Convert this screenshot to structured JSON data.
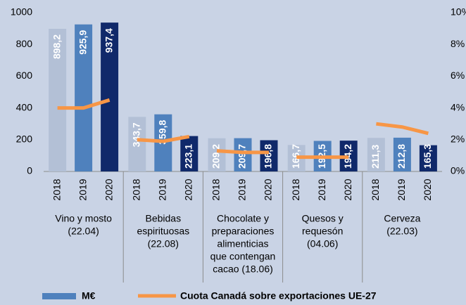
{
  "chart_data": {
    "type": "bar",
    "categories": [
      "2018",
      "2019",
      "2020",
      "2018",
      "2019",
      "2020",
      "2018",
      "2019",
      "2020",
      "2018",
      "2019",
      "2020",
      "2018",
      "2019",
      "2020"
    ],
    "groups": [
      {
        "label": [
          "Vino y mosto",
          "(22.04)"
        ]
      },
      {
        "label": [
          "Bebidas",
          "espirituosas",
          "(22.08)"
        ]
      },
      {
        "label": [
          "Chocolate y",
          "preparaciones",
          "alimenticias",
          "que contengan",
          "cacao (18.06)"
        ]
      },
      {
        "label": [
          "Quesos y",
          "requesón",
          "(04.06)"
        ]
      },
      {
        "label": [
          "Cerveza",
          "(22.03)"
        ]
      }
    ],
    "series": [
      {
        "name": "M€",
        "color": "#4f81bd",
        "colors": [
          "#b3c0d6",
          "#4f81bd",
          "#10296a",
          "#b3c0d6",
          "#4f81bd",
          "#10296a",
          "#b3c0d6",
          "#4f81bd",
          "#10296a",
          "#b3c0d6",
          "#4f81bd",
          "#10296a",
          "#b3c0d6",
          "#4f81bd",
          "#10296a"
        ],
        "values": [
          898.2,
          925.9,
          937.4,
          343.7,
          359.8,
          223.1,
          209.2,
          209.7,
          196.8,
          166.7,
          192.5,
          194.2,
          211.3,
          212.8,
          165.3
        ],
        "value_labels": [
          "898,2",
          "925,9",
          "937,4",
          "343,7",
          "359,8",
          "223,1",
          "209,2",
          "209,7",
          "196,8",
          "166,7",
          "192,5",
          "194,2",
          "211,3",
          "212,8",
          "165,3"
        ]
      },
      {
        "name": "Cuota Canadá sobre exportaciones UE-27",
        "color": "#f79646",
        "axis": "y2",
        "type": "line",
        "values": [
          4.0,
          4.0,
          4.5,
          2.0,
          1.9,
          2.2,
          1.3,
          1.2,
          1.2,
          0.9,
          0.9,
          0.9,
          3.0,
          2.8,
          2.4
        ]
      }
    ],
    "ylim": [
      0,
      1000
    ],
    "yticks": [
      0,
      200,
      400,
      600,
      800,
      1000
    ],
    "y2lim": [
      0,
      10
    ],
    "y2ticks": [
      {
        "value": 0,
        "label": "0%"
      },
      {
        "value": 2,
        "label": "2%"
      },
      {
        "value": 4,
        "label": "4%"
      },
      {
        "value": 6,
        "label": "6%"
      },
      {
        "value": 8,
        "label": "8%"
      },
      {
        "value": 10,
        "label": "10%"
      }
    ],
    "grid": false,
    "legend": "bottom"
  }
}
